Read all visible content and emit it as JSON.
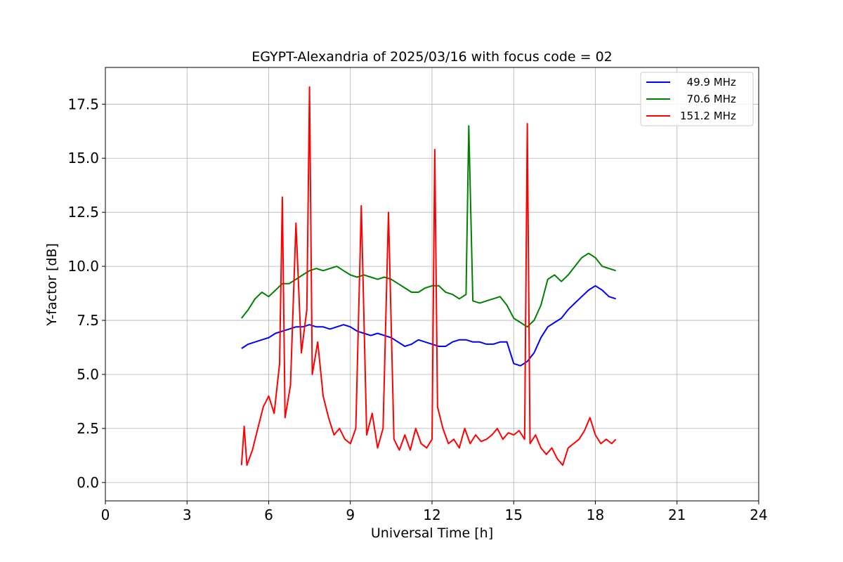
{
  "chart_data": {
    "type": "line",
    "title": "EGYPT-Alexandria of 2025/03/16 with focus code = 02",
    "xlabel": "Universal Time [h]",
    "ylabel": "Y-factor [dB]",
    "xlim": [
      0,
      24
    ],
    "ylim": [
      -0.85,
      19.2
    ],
    "xticks": [
      0,
      3,
      6,
      9,
      12,
      15,
      18,
      21,
      24
    ],
    "xtick_labels": [
      "0",
      "3",
      "6",
      "9",
      "12",
      "15",
      "18",
      "21",
      "24"
    ],
    "yticks": [
      0.0,
      2.5,
      5.0,
      7.5,
      10.0,
      12.5,
      15.0,
      17.5
    ],
    "ytick_labels": [
      "0.0",
      "2.5",
      "5.0",
      "7.5",
      "10.0",
      "12.5",
      "15.0",
      "17.5"
    ],
    "grid": true,
    "legend_position": "upper right",
    "series": [
      {
        "name": "  49.9 MHz",
        "color": "#0000ff",
        "x": [
          5.0,
          5.25,
          5.5,
          5.75,
          6.0,
          6.25,
          6.5,
          6.75,
          7.0,
          7.25,
          7.5,
          7.75,
          8.0,
          8.25,
          8.5,
          8.75,
          9.0,
          9.25,
          9.5,
          9.75,
          10.0,
          10.25,
          10.5,
          10.75,
          11.0,
          11.25,
          11.5,
          11.75,
          12.0,
          12.25,
          12.5,
          12.75,
          13.0,
          13.25,
          13.5,
          13.75,
          14.0,
          14.25,
          14.5,
          14.75,
          15.0,
          15.25,
          15.5,
          15.75,
          16.0,
          16.25,
          16.5,
          16.75,
          17.0,
          17.25,
          17.5,
          17.75,
          18.0,
          18.25,
          18.5,
          18.75
        ],
        "y": [
          6.2,
          6.4,
          6.5,
          6.6,
          6.7,
          6.9,
          7.0,
          7.1,
          7.2,
          7.2,
          7.3,
          7.2,
          7.2,
          7.1,
          7.2,
          7.3,
          7.2,
          7.0,
          6.9,
          6.8,
          6.9,
          6.8,
          6.7,
          6.5,
          6.3,
          6.4,
          6.6,
          6.5,
          6.4,
          6.3,
          6.3,
          6.5,
          6.6,
          6.6,
          6.5,
          6.5,
          6.4,
          6.4,
          6.5,
          6.5,
          5.5,
          5.4,
          5.6,
          6.0,
          6.7,
          7.2,
          7.4,
          7.6,
          8.0,
          8.3,
          8.6,
          8.9,
          9.1,
          8.9,
          8.6,
          8.5
        ]
      },
      {
        "name": "  70.6 MHz",
        "color": "#008000",
        "x": [
          5.0,
          5.25,
          5.5,
          5.75,
          6.0,
          6.25,
          6.5,
          6.75,
          7.0,
          7.25,
          7.5,
          7.75,
          8.0,
          8.25,
          8.5,
          8.75,
          9.0,
          9.25,
          9.5,
          9.75,
          10.0,
          10.25,
          10.5,
          10.75,
          11.0,
          11.25,
          11.5,
          11.75,
          12.0,
          12.25,
          12.5,
          12.75,
          13.0,
          13.25,
          13.35,
          13.5,
          13.75,
          14.0,
          14.25,
          14.5,
          14.75,
          15.0,
          15.25,
          15.5,
          15.75,
          16.0,
          16.25,
          16.5,
          16.75,
          17.0,
          17.25,
          17.5,
          17.75,
          18.0,
          18.25,
          18.5,
          18.75
        ],
        "y": [
          7.6,
          8.0,
          8.5,
          8.8,
          8.6,
          8.9,
          9.2,
          9.2,
          9.4,
          9.6,
          9.8,
          9.9,
          9.8,
          9.9,
          10.0,
          9.8,
          9.6,
          9.5,
          9.6,
          9.5,
          9.4,
          9.5,
          9.4,
          9.2,
          9.0,
          8.8,
          8.8,
          9.0,
          9.1,
          9.1,
          8.8,
          8.7,
          8.5,
          8.7,
          16.5,
          8.4,
          8.3,
          8.4,
          8.5,
          8.6,
          8.2,
          7.6,
          7.4,
          7.2,
          7.5,
          8.2,
          9.4,
          9.6,
          9.3,
          9.6,
          10.0,
          10.4,
          10.6,
          10.4,
          10.0,
          9.9,
          9.8
        ]
      },
      {
        "name": "151.2 MHz",
        "color": "#ff0000",
        "x": [
          5.0,
          5.1,
          5.2,
          5.4,
          5.6,
          5.8,
          6.0,
          6.2,
          6.4,
          6.5,
          6.6,
          6.8,
          7.0,
          7.2,
          7.4,
          7.5,
          7.6,
          7.8,
          8.0,
          8.2,
          8.4,
          8.6,
          8.8,
          9.0,
          9.2,
          9.4,
          9.6,
          9.8,
          10.0,
          10.2,
          10.4,
          10.6,
          10.8,
          11.0,
          11.2,
          11.4,
          11.6,
          11.8,
          12.0,
          12.1,
          12.2,
          12.4,
          12.6,
          12.8,
          13.0,
          13.2,
          13.4,
          13.6,
          13.8,
          14.0,
          14.2,
          14.4,
          14.6,
          14.8,
          15.0,
          15.2,
          15.4,
          15.5,
          15.6,
          15.8,
          16.0,
          16.2,
          16.4,
          16.6,
          16.8,
          17.0,
          17.2,
          17.4,
          17.6,
          17.8,
          18.0,
          18.2,
          18.4,
          18.6,
          18.75
        ],
        "y": [
          0.8,
          2.6,
          0.8,
          1.5,
          2.5,
          3.5,
          4.0,
          3.2,
          5.5,
          13.2,
          3.0,
          4.5,
          12.0,
          6.0,
          8.0,
          18.3,
          5.0,
          6.5,
          4.0,
          3.0,
          2.2,
          2.5,
          2.0,
          1.8,
          2.5,
          12.8,
          2.2,
          3.2,
          1.6,
          2.5,
          12.5,
          2.0,
          1.5,
          2.2,
          1.5,
          2.5,
          1.8,
          1.6,
          2.0,
          15.4,
          3.5,
          2.5,
          1.8,
          2.0,
          1.6,
          2.5,
          1.8,
          2.2,
          1.9,
          2.0,
          2.2,
          2.5,
          2.0,
          2.3,
          2.2,
          2.4,
          2.0,
          16.6,
          1.8,
          2.2,
          1.6,
          1.3,
          1.6,
          1.1,
          0.8,
          1.6,
          1.8,
          2.0,
          2.4,
          3.0,
          2.2,
          1.8,
          2.0,
          1.8,
          2.0
        ]
      }
    ]
  }
}
